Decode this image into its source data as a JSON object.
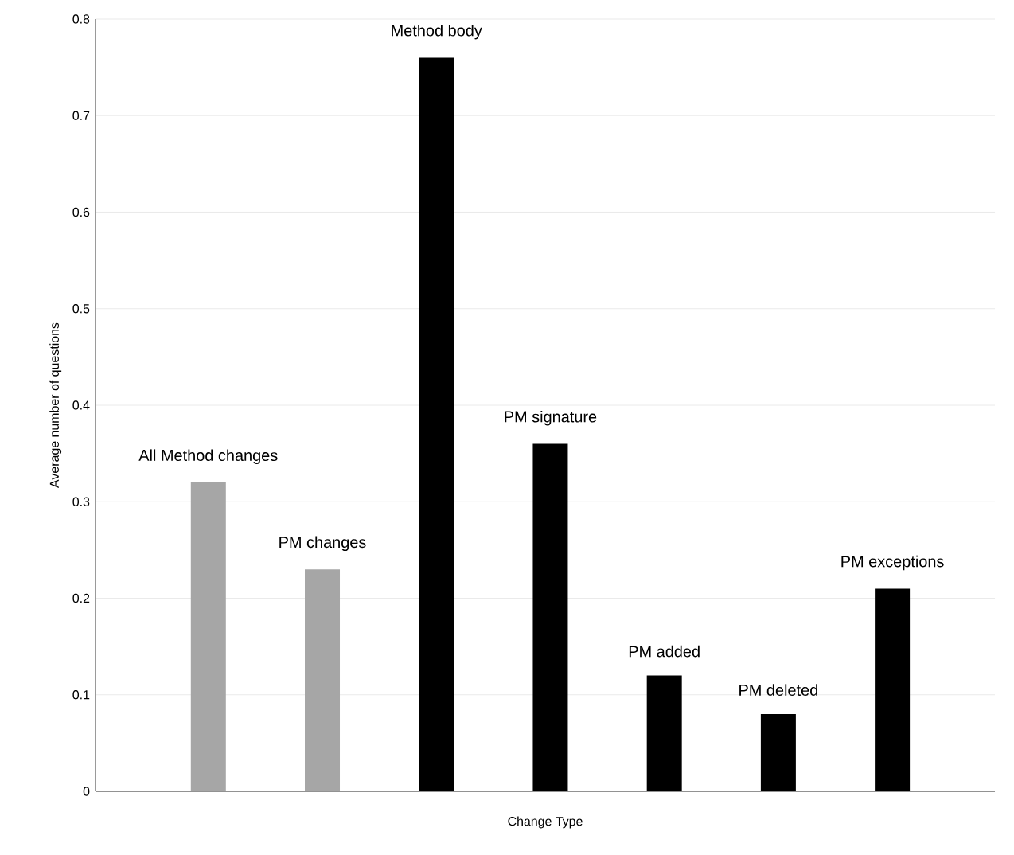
{
  "chart_data": {
    "type": "bar",
    "xlabel": "Change Type",
    "ylabel": "Average number of questions",
    "categories": [
      "All Method changes",
      "PM changes",
      "Method body",
      "PM signature",
      "PM added",
      "PM deleted",
      "PM exceptions"
    ],
    "values": [
      0.32,
      0.23,
      0.76,
      0.36,
      0.12,
      0.08,
      0.21
    ],
    "colors": [
      "#a6a6a6",
      "#a6a6a6",
      "#000000",
      "#000000",
      "#000000",
      "#000000",
      "#000000"
    ],
    "ylim": [
      0,
      0.8
    ],
    "yticks": [
      0,
      0.1,
      0.2,
      0.3,
      0.4,
      0.5,
      0.6,
      0.7,
      0.8
    ],
    "grid": "y"
  }
}
